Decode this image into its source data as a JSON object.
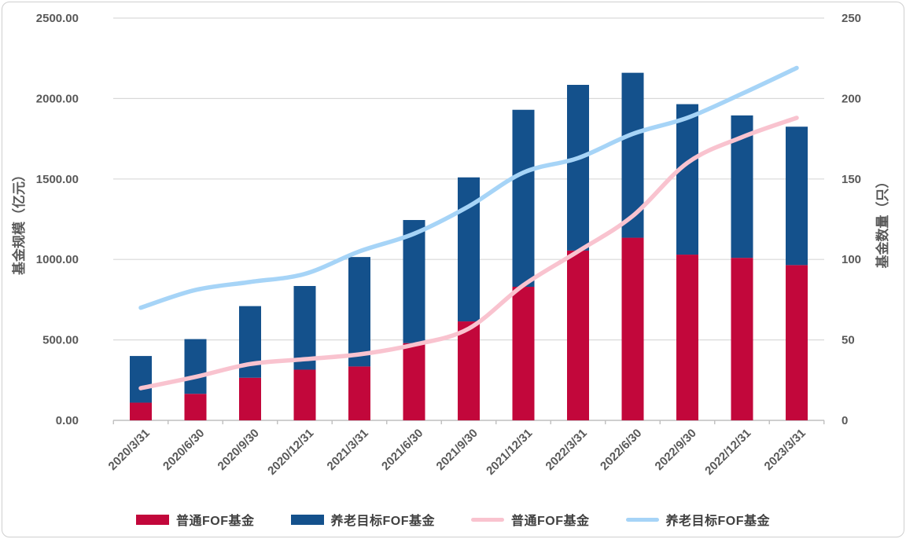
{
  "chart_data": {
    "type": "bar",
    "subtype": "stacked-bars-with-lines",
    "title": "",
    "categories": [
      "2020/3/31",
      "2020/6/30",
      "2020/9/30",
      "2020/12/31",
      "2021/3/31",
      "2021/6/30",
      "2021/9/30",
      "2021/12/31",
      "2022/3/31",
      "2022/6/30",
      "2022/9/30",
      "2022/12/31",
      "2023/3/31"
    ],
    "bar_series": [
      {
        "name": "普通FOF基金",
        "axis": "left",
        "color": "#C2073B",
        "values": [
          110,
          165,
          265,
          315,
          335,
          480,
          615,
          830,
          1055,
          1135,
          1030,
          1010,
          965
        ]
      },
      {
        "name": "养老目标FOF基金",
        "axis": "left",
        "color": "#14518C",
        "values": [
          290,
          340,
          445,
          520,
          680,
          765,
          895,
          1100,
          1030,
          1025,
          935,
          885,
          860
        ]
      }
    ],
    "line_series": [
      {
        "name": "普通FOF基金",
        "axis": "right",
        "color": "#F9C3CF",
        "values": [
          20,
          27,
          35,
          38,
          41,
          47,
          57,
          84,
          105,
          127,
          160,
          176,
          188
        ]
      },
      {
        "name": "养老目标FOF基金",
        "axis": "right",
        "color": "#A6D4F7",
        "values": [
          70,
          81,
          86,
          91,
          105,
          116,
          133,
          154,
          163,
          178,
          188,
          203,
          219
        ]
      }
    ],
    "left_axis": {
      "title": "基金规模（亿元）",
      "min": 0,
      "max": 2500,
      "ticks": [
        "0.00",
        "500.00",
        "1000.00",
        "1500.00",
        "2000.00",
        "2500.00"
      ]
    },
    "right_axis": {
      "title": "基金数量（只）",
      "min": 0,
      "max": 250,
      "ticks": [
        "0",
        "50",
        "100",
        "150",
        "200",
        "250"
      ]
    },
    "grid": true,
    "legend_position": "bottom"
  },
  "legend": {
    "items": [
      {
        "label": "普通FOF基金",
        "type": "bar",
        "color": "#C2073B"
      },
      {
        "label": "养老目标FOF基金",
        "type": "bar",
        "color": "#14518C"
      },
      {
        "label": "普通FOF基金",
        "type": "line",
        "color": "#F9C3CF"
      },
      {
        "label": "养老目标FOF基金",
        "type": "line",
        "color": "#A6D4F7"
      }
    ]
  },
  "colors": {
    "grid": "#d9d9d9",
    "axis_line": "#bfbfbf",
    "tick_text": "#595959",
    "axis_title": "#595959",
    "legend_text": "#404040",
    "border": "#cfcfcf"
  }
}
